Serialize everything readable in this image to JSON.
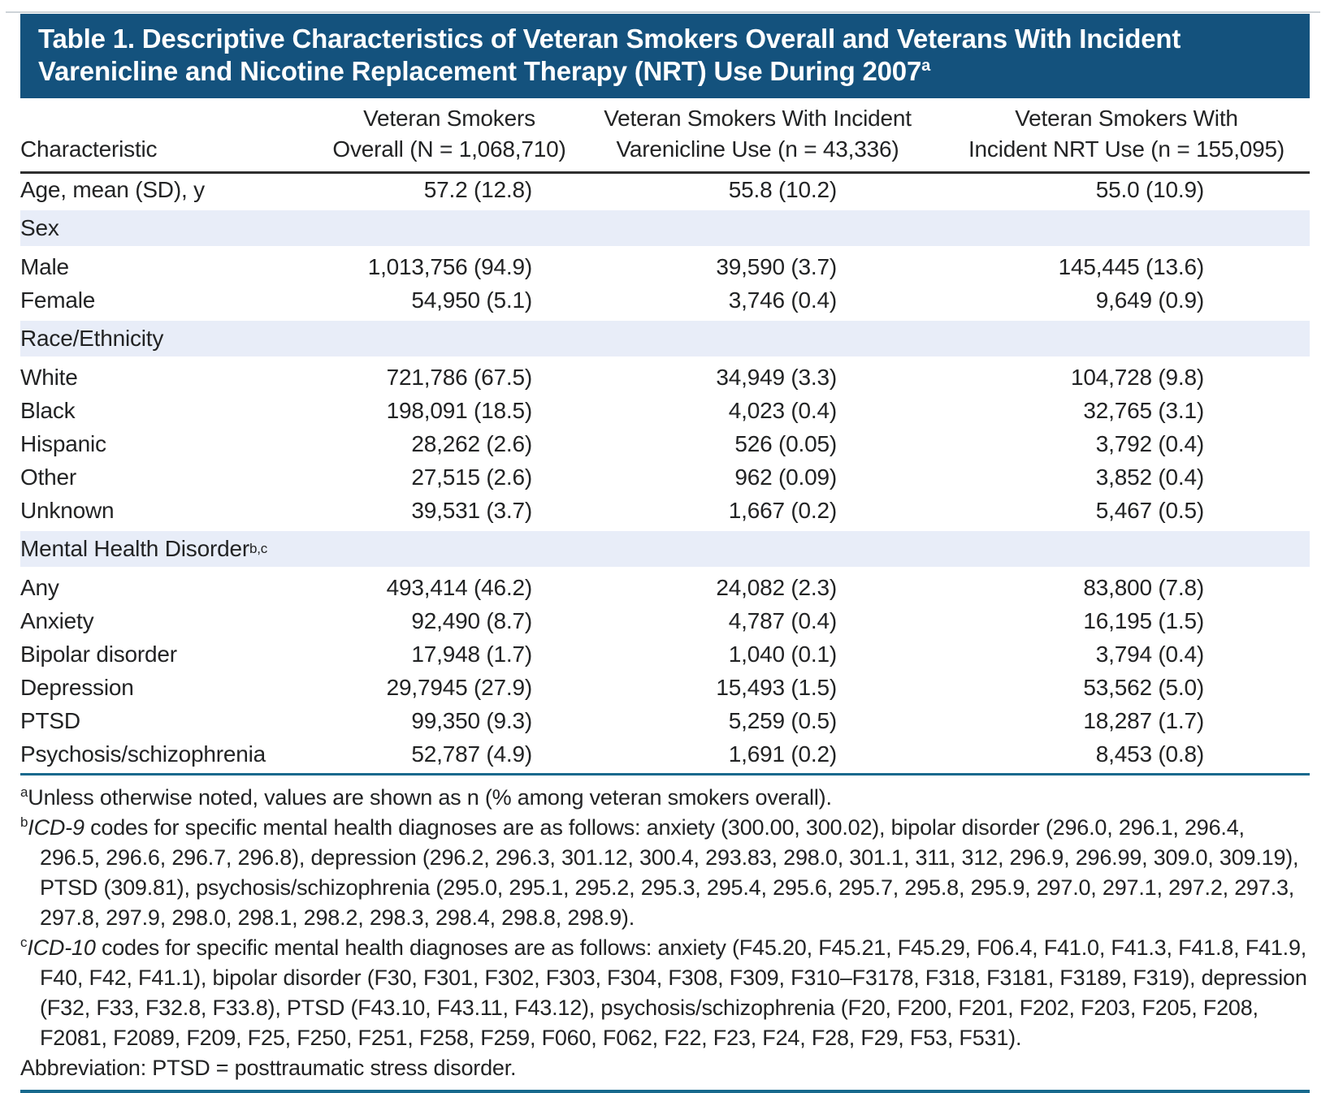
{
  "colors": {
    "banner_bg": "#14527D",
    "banner_text": "#FFFFFF",
    "section_row_bg": "#E8EDF8",
    "teal_rule": "#17698D",
    "header_rule": "#2E2E2E",
    "body_text": "#222324"
  },
  "title": {
    "line1": "Table 1. Descriptive Characteristics of Veteran Smokers Overall and Veterans With Incident",
    "line2": "Varenicline and Nicotine Replacement Therapy (NRT) Use During 2007",
    "superscript": "a"
  },
  "table": {
    "column_headers": [
      {
        "lines": [
          "Characteristic"
        ]
      },
      {
        "lines": [
          "Veteran Smokers",
          "Overall (N = 1,068,710)"
        ]
      },
      {
        "lines": [
          "Veteran Smokers With Incident",
          "Varenicline Use (n = 43,336)"
        ]
      },
      {
        "lines": [
          "Veteran Smokers With",
          "Incident NRT Use (n = 155,095)"
        ]
      }
    ],
    "rows": [
      {
        "type": "data",
        "label": "Age, mean (SD), y",
        "sup": "",
        "values": [
          "57.2 (12.8)",
          "55.8 (10.2)",
          "55.0 (10.9)"
        ]
      },
      {
        "type": "section",
        "label": "Sex",
        "sup": "",
        "values": []
      },
      {
        "type": "data",
        "label": "Male",
        "sup": "",
        "values": [
          "1,013,756 (94.9)",
          "39,590 (3.7)",
          "145,445 (13.6)"
        ]
      },
      {
        "type": "data",
        "label": "Female",
        "sup": "",
        "values": [
          "54,950 (5.1)",
          "3,746 (0.4)",
          "9,649 (0.9)"
        ]
      },
      {
        "type": "section",
        "label": "Race/Ethnicity",
        "sup": "",
        "values": []
      },
      {
        "type": "data",
        "label": "White",
        "sup": "",
        "values": [
          "721,786 (67.5)",
          "34,949 (3.3)",
          "104,728 (9.8)"
        ]
      },
      {
        "type": "data",
        "label": "Black",
        "sup": "",
        "values": [
          "198,091 (18.5)",
          "4,023 (0.4)",
          "32,765 (3.1)"
        ]
      },
      {
        "type": "data",
        "label": "Hispanic",
        "sup": "",
        "values": [
          "28,262 (2.6)",
          "526 (0.05)",
          "3,792 (0.4)"
        ]
      },
      {
        "type": "data",
        "label": "Other",
        "sup": "",
        "values": [
          "27,515 (2.6)",
          "962 (0.09)",
          "3,852 (0.4)"
        ]
      },
      {
        "type": "data",
        "label": "Unknown",
        "sup": "",
        "values": [
          "39,531 (3.7)",
          "1,667 (0.2)",
          "5,467 (0.5)"
        ]
      },
      {
        "type": "section",
        "label": "Mental Health Disorder",
        "sup": "b,c",
        "values": []
      },
      {
        "type": "data",
        "label": "Any",
        "sup": "",
        "values": [
          "493,414 (46.2)",
          "24,082 (2.3)",
          "83,800 (7.8)"
        ]
      },
      {
        "type": "data",
        "label": "Anxiety",
        "sup": "",
        "values": [
          "92,490 (8.7)",
          "4,787 (0.4)",
          "16,195 (1.5)"
        ]
      },
      {
        "type": "data",
        "label": "Bipolar disorder",
        "sup": "",
        "values": [
          "17,948 (1.7)",
          "1,040 (0.1)",
          "3,794 (0.4)"
        ]
      },
      {
        "type": "data",
        "label": "Depression",
        "sup": "",
        "values": [
          "29,7945 (27.9)",
          "15,493 (1.5)",
          "53,562 (5.0)"
        ]
      },
      {
        "type": "data",
        "label": "PTSD",
        "sup": "",
        "values": [
          "99,350 (9.3)",
          "5,259 (0.5)",
          "18,287 (1.7)"
        ]
      },
      {
        "type": "data",
        "label": "Psychosis/schizophrenia",
        "sup": "",
        "values": [
          "52,787 (4.9)",
          "1,691 (0.2)",
          "8,453 (0.8)"
        ]
      }
    ]
  },
  "footnotes": [
    {
      "marker": "a",
      "italic": "",
      "text": "Unless otherwise noted, values are shown as n (% among veteran smokers overall)."
    },
    {
      "marker": "b",
      "italic": "ICD-9",
      "text": " codes for specific mental health diagnoses are as follows: anxiety (300.00, 300.02), bipolar disorder (296.0, 296.1, 296.4, 296.5, 296.6, 296.7, 296.8), depression (296.2, 296.3, 301.12, 300.4, 293.83, 298.0, 301.1, 311, 312, 296.9, 296.99, 309.0, 309.19), PTSD (309.81), psychosis/schizophrenia (295.0, 295.1, 295.2, 295.3, 295.4, 295.6, 295.7, 295.8, 295.9, 297.0, 297.1, 297.2, 297.3, 297.8, 297.9, 298.0, 298.1, 298.2, 298.3, 298.4, 298.8, 298.9)."
    },
    {
      "marker": "c",
      "italic": "ICD-10",
      "text": " codes for specific mental health diagnoses are as follows: anxiety (F45.20, F45.21, F45.29, F06.4, F41.0, F41.3, F41.8, F41.9, F40, F42, F41.1), bipolar disorder (F30, F301, F302, F303, F304, F308, F309, F310–F3178, F318, F3181, F3189, F319), depression (F32, F33, F32.8, F33.8), PTSD (F43.10, F43.11, F43.12), psychosis/schizophrenia (F20, F200, F201, F202, F203, F205, F208, F2081, F2089, F209, F25, F250, F251, F258, F259, F060, F062, F22, F23, F24, F28, F29, F53, F531)."
    },
    {
      "marker": "",
      "italic": "",
      "text": "Abbreviation: PTSD = posttraumatic stress disorder."
    }
  ]
}
